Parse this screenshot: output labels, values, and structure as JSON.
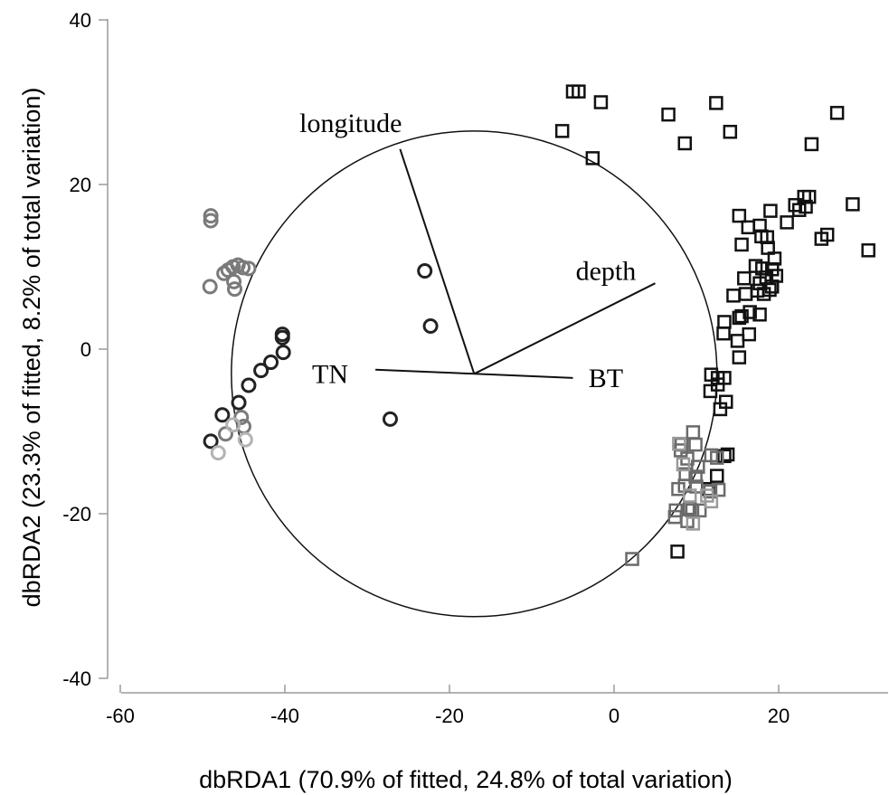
{
  "chart_data": {
    "type": "scatter",
    "title": "",
    "xlabel": "dbRDA1 (70.9% of fitted, 24.8% of total variation)",
    "ylabel": "dbRDA2 (23.3% of fitted, 8.2% of total variation)",
    "xlim": [
      -60,
      33
    ],
    "ylim": [
      -40,
      40
    ],
    "x_ticks": [
      -60,
      -40,
      -20,
      0,
      20
    ],
    "y_ticks": [
      -40,
      -20,
      0,
      20,
      40
    ],
    "x_tick_labels": [
      "-60",
      "-40",
      "-20",
      "0",
      "20"
    ],
    "y_tick_labels": [
      "-40",
      "-20",
      "0",
      "20",
      "40"
    ],
    "grid": false,
    "correlation_circle": {
      "center": [
        -17,
        -3
      ],
      "radius": 29.5
    },
    "vectors": [
      {
        "label": "longitude",
        "end": [
          -26,
          24.3
        ],
        "label_pos": [
          -32,
          27.5
        ]
      },
      {
        "label": "depth",
        "end": [
          5,
          8
        ],
        "label_pos": [
          -1,
          9.5
        ]
      },
      {
        "label": "TN",
        "end": [
          -29,
          -2.5
        ],
        "label_pos": [
          -34.5,
          -3
        ]
      },
      {
        "label": "BT",
        "end": [
          -5,
          -3.5
        ],
        "label_pos": [
          -1,
          -3.5
        ]
      }
    ],
    "series": [
      {
        "marker": "circle",
        "color": "#222222",
        "points": [
          [
            -23,
            9.5
          ],
          [
            -22.3,
            2.8
          ],
          [
            -27.2,
            -8.5
          ],
          [
            -40.3,
            1.8
          ],
          [
            -40.3,
            1.4
          ],
          [
            -40.2,
            -0.4
          ],
          [
            -41.7,
            -1.6
          ],
          [
            -42.9,
            -2.6
          ],
          [
            -44.4,
            -4.4
          ],
          [
            -45.6,
            -6.5
          ],
          [
            -47.6,
            -8
          ],
          [
            -49,
            -11.2
          ]
        ]
      },
      {
        "marker": "circle",
        "color": "#7a7a7a",
        "points": [
          [
            -49,
            16.2
          ],
          [
            -49,
            15.6
          ],
          [
            -49.1,
            7.6
          ],
          [
            -47.4,
            9.2
          ],
          [
            -46.9,
            9.6
          ],
          [
            -46.3,
            10
          ],
          [
            -46.2,
            8.2
          ],
          [
            -46.1,
            7.3
          ],
          [
            -45.7,
            10.2
          ],
          [
            -45.1,
            9.9
          ],
          [
            -44.4,
            9.8
          ],
          [
            -45.3,
            -8.3
          ],
          [
            -45,
            -9.4
          ],
          [
            -47.2,
            -10.3
          ]
        ]
      },
      {
        "marker": "circle",
        "color": "#b3b3b3",
        "points": [
          [
            -44.8,
            -11
          ],
          [
            -48.1,
            -12.6
          ],
          [
            -46.3,
            -9.2
          ]
        ]
      },
      {
        "marker": "square",
        "color": "#111111",
        "points": [
          [
            -5,
            31.3
          ],
          [
            -4.3,
            31.3
          ],
          [
            -1.6,
            30
          ],
          [
            -6.3,
            26.5
          ],
          [
            -2.6,
            23.2
          ],
          [
            6.6,
            28.5
          ],
          [
            12.4,
            29.9
          ],
          [
            14.1,
            26.4
          ],
          [
            8.6,
            25
          ],
          [
            27.1,
            28.7
          ],
          [
            24,
            24.9
          ],
          [
            29,
            17.6
          ],
          [
            30.9,
            12
          ],
          [
            25.2,
            13.4
          ],
          [
            25.9,
            13.9
          ],
          [
            15.2,
            16.2
          ],
          [
            16.3,
            14.8
          ],
          [
            17.7,
            15
          ],
          [
            19,
            16.8
          ],
          [
            21,
            15.4
          ],
          [
            22,
            17.5
          ],
          [
            22.5,
            16.9
          ],
          [
            23.1,
            18.5
          ],
          [
            23.7,
            18.5
          ],
          [
            23.3,
            17.3
          ],
          [
            15.5,
            12.7
          ],
          [
            17.9,
            13.7
          ],
          [
            18.6,
            13.6
          ],
          [
            18.7,
            12.3
          ],
          [
            19.5,
            11
          ],
          [
            17.2,
            10.1
          ],
          [
            18,
            9.8
          ],
          [
            19.2,
            9.7
          ],
          [
            18.5,
            8.7
          ],
          [
            19.7,
            8.9
          ],
          [
            17.7,
            8
          ],
          [
            17.4,
            7.1
          ],
          [
            18.2,
            6.7
          ],
          [
            19.2,
            7.6
          ],
          [
            18.9,
            7.2
          ],
          [
            15.8,
            8.6
          ],
          [
            14.5,
            6.5
          ],
          [
            16,
            6.7
          ],
          [
            17.7,
            4.2
          ],
          [
            16.5,
            4.5
          ],
          [
            15.2,
            3.8
          ],
          [
            15.5,
            4
          ],
          [
            16.4,
            1.8
          ],
          [
            15,
            1
          ],
          [
            15.2,
            -1
          ],
          [
            13.4,
            3.3
          ],
          [
            13.3,
            1.9
          ],
          [
            12.6,
            -3.5
          ],
          [
            11.8,
            -3.1
          ],
          [
            13.4,
            -3.5
          ],
          [
            12.6,
            -4.3
          ],
          [
            11.7,
            -5.1
          ],
          [
            13.6,
            -6.4
          ],
          [
            12.9,
            -7.3
          ],
          [
            12.5,
            -15.4
          ],
          [
            13.8,
            -12.8
          ],
          [
            13.4,
            -13
          ],
          [
            11.4,
            -17
          ],
          [
            7.7,
            -24.6
          ]
        ]
      },
      {
        "marker": "square",
        "color": "#6a6a6a",
        "points": [
          [
            9.6,
            -10.1
          ],
          [
            8.2,
            -11.6
          ],
          [
            8.1,
            -12.3
          ],
          [
            9.9,
            -11.6
          ],
          [
            8.9,
            -13.3
          ],
          [
            10.2,
            -14.3
          ],
          [
            9.9,
            -15.5
          ],
          [
            8.6,
            -16.6
          ],
          [
            10,
            -16.7
          ],
          [
            11.8,
            -12.9
          ],
          [
            12.5,
            -13.2
          ],
          [
            9.2,
            -19.3
          ],
          [
            7.5,
            -19.6
          ],
          [
            7.4,
            -20.4
          ],
          [
            8.9,
            -20.9
          ],
          [
            9.5,
            -19.6
          ],
          [
            10.4,
            -19.6
          ],
          [
            11.7,
            -17.3
          ],
          [
            12.7,
            -17.1
          ],
          [
            2.2,
            -25.5
          ],
          [
            7.8,
            -17
          ],
          [
            8.7,
            -15.2
          ]
        ]
      },
      {
        "marker": "square",
        "color": "#9a9a9a",
        "points": [
          [
            7.9,
            -11.5
          ],
          [
            8.4,
            -14
          ],
          [
            9.2,
            -17.8
          ],
          [
            11.3,
            -17.8
          ],
          [
            11.8,
            -18.5
          ],
          [
            9.6,
            -21.2
          ]
        ]
      }
    ]
  }
}
